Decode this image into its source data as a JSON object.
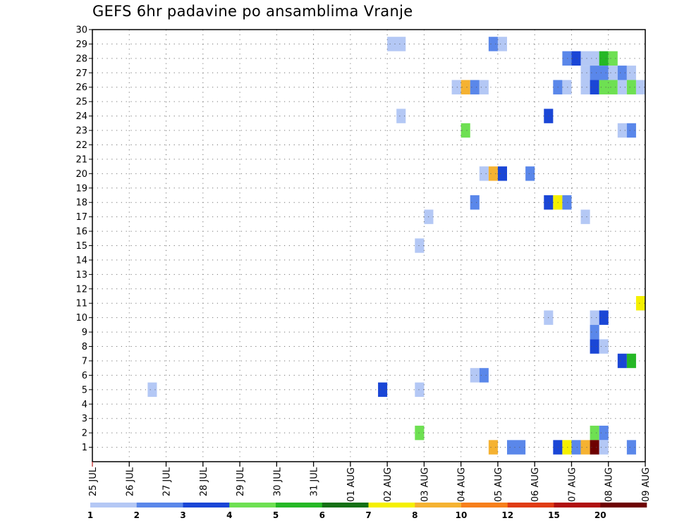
{
  "chart_data": {
    "type": "heatmap",
    "title": "GEFS 6hr padavine po ansamblima Vranje",
    "xlabel": "",
    "ylabel": "",
    "x_ticks": [
      "25 JUL",
      "26 JUL",
      "27 JUL",
      "28 JUL",
      "29 JUL",
      "30 JUL",
      "31 JUL",
      "01 AUG",
      "02 AUG",
      "03 AUG",
      "04 AUG",
      "05 AUG",
      "06 AUG",
      "07 AUG",
      "08 AUG",
      "09 AUG"
    ],
    "y_ticks": [
      "1",
      "2",
      "3",
      "4",
      "5",
      "6",
      "7",
      "8",
      "9",
      "10",
      "11",
      "12",
      "13",
      "14",
      "15",
      "16",
      "17",
      "18",
      "19",
      "20",
      "21",
      "22",
      "23",
      "24",
      "25",
      "26",
      "27",
      "28",
      "29",
      "30"
    ],
    "xlim_days": [
      0,
      15
    ],
    "ylim": [
      0,
      30
    ],
    "grid": true,
    "colorbar": {
      "levels": [
        "1",
        "2",
        "3",
        "4",
        "5",
        "6",
        "7",
        "8",
        "10",
        "12",
        "15",
        "20"
      ],
      "colors": [
        "#b4c8f5",
        "#5a87ea",
        "#1a46d6",
        "#6ee052",
        "#25b825",
        "#157015",
        "#f5f000",
        "#f5b232",
        "#f77f1b",
        "#e03c14",
        "#b01010",
        "#6e0000"
      ]
    },
    "cells": [
      {
        "d": 8.0,
        "w": 0.5,
        "m": 29,
        "c": 0
      },
      {
        "d": 10.75,
        "w": 0.25,
        "m": 29,
        "c": 1
      },
      {
        "d": 11.0,
        "w": 0.25,
        "m": 29,
        "c": 0
      },
      {
        "d": 12.75,
        "w": 0.25,
        "m": 28,
        "c": 1
      },
      {
        "d": 13.0,
        "w": 0.25,
        "m": 28,
        "c": 2
      },
      {
        "d": 13.25,
        "w": 0.5,
        "m": 28,
        "c": 0
      },
      {
        "d": 13.75,
        "w": 0.25,
        "m": 28,
        "c": 4
      },
      {
        "d": 14.0,
        "w": 0.25,
        "m": 28,
        "c": 3
      },
      {
        "d": 13.25,
        "w": 0.25,
        "m": 27,
        "c": 0
      },
      {
        "d": 13.5,
        "w": 0.5,
        "m": 27,
        "c": 1
      },
      {
        "d": 14.0,
        "w": 0.25,
        "m": 27,
        "c": 0
      },
      {
        "d": 14.25,
        "w": 0.25,
        "m": 27,
        "c": 1
      },
      {
        "d": 14.5,
        "w": 0.25,
        "m": 27,
        "c": 0
      },
      {
        "d": 9.75,
        "w": 0.25,
        "m": 26,
        "c": 0
      },
      {
        "d": 10.0,
        "w": 0.25,
        "m": 26,
        "c": 7
      },
      {
        "d": 10.25,
        "w": 0.25,
        "m": 26,
        "c": 1
      },
      {
        "d": 10.5,
        "w": 0.25,
        "m": 26,
        "c": 0
      },
      {
        "d": 12.5,
        "w": 0.25,
        "m": 26,
        "c": 1
      },
      {
        "d": 12.75,
        "w": 0.25,
        "m": 26,
        "c": 0
      },
      {
        "d": 13.25,
        "w": 0.25,
        "m": 26,
        "c": 0
      },
      {
        "d": 13.5,
        "w": 0.25,
        "m": 26,
        "c": 2
      },
      {
        "d": 13.75,
        "w": 0.5,
        "m": 26,
        "c": 3
      },
      {
        "d": 14.25,
        "w": 0.25,
        "m": 26,
        "c": 0
      },
      {
        "d": 14.5,
        "w": 0.25,
        "m": 26,
        "c": 3
      },
      {
        "d": 14.75,
        "w": 0.25,
        "m": 26,
        "c": 0
      },
      {
        "d": 12.25,
        "w": 0.25,
        "m": 24,
        "c": 2
      },
      {
        "d": 8.25,
        "w": 0.25,
        "m": 24,
        "c": 0
      },
      {
        "d": 10.0,
        "w": 0.25,
        "m": 23,
        "c": 3
      },
      {
        "d": 14.25,
        "w": 0.25,
        "m": 23,
        "c": 0
      },
      {
        "d": 14.5,
        "w": 0.25,
        "m": 23,
        "c": 1
      },
      {
        "d": 10.5,
        "w": 0.25,
        "m": 20,
        "c": 0
      },
      {
        "d": 10.75,
        "w": 0.25,
        "m": 20,
        "c": 7
      },
      {
        "d": 11.0,
        "w": 0.25,
        "m": 20,
        "c": 2
      },
      {
        "d": 11.75,
        "w": 0.25,
        "m": 20,
        "c": 1
      },
      {
        "d": 10.25,
        "w": 0.25,
        "m": 18,
        "c": 1
      },
      {
        "d": 12.25,
        "w": 0.25,
        "m": 18,
        "c": 2
      },
      {
        "d": 12.5,
        "w": 0.25,
        "m": 18,
        "c": 6
      },
      {
        "d": 12.75,
        "w": 0.25,
        "m": 18,
        "c": 1
      },
      {
        "d": 9.0,
        "w": 0.25,
        "m": 17,
        "c": 0
      },
      {
        "d": 13.25,
        "w": 0.25,
        "m": 17,
        "c": 0
      },
      {
        "d": 8.75,
        "w": 0.25,
        "m": 15,
        "c": 0
      },
      {
        "d": 14.75,
        "w": 0.25,
        "m": 11,
        "c": 6
      },
      {
        "d": 12.25,
        "w": 0.25,
        "m": 10,
        "c": 0
      },
      {
        "d": 13.5,
        "w": 0.25,
        "m": 10,
        "c": 0
      },
      {
        "d": 13.75,
        "w": 0.25,
        "m": 10,
        "c": 2
      },
      {
        "d": 13.5,
        "w": 0.25,
        "m": 9,
        "c": 1
      },
      {
        "d": 13.5,
        "w": 0.25,
        "m": 8,
        "c": 2
      },
      {
        "d": 13.75,
        "w": 0.25,
        "m": 8,
        "c": 0
      },
      {
        "d": 14.25,
        "w": 0.25,
        "m": 7,
        "c": 2
      },
      {
        "d": 14.5,
        "w": 0.25,
        "m": 7,
        "c": 4
      },
      {
        "d": 10.25,
        "w": 0.25,
        "m": 6,
        "c": 0
      },
      {
        "d": 10.5,
        "w": 0.25,
        "m": 6,
        "c": 1
      },
      {
        "d": 1.5,
        "w": 0.25,
        "m": 5,
        "c": 0
      },
      {
        "d": 7.75,
        "w": 0.25,
        "m": 5,
        "c": 2
      },
      {
        "d": 8.75,
        "w": 0.25,
        "m": 5,
        "c": 0
      },
      {
        "d": 8.75,
        "w": 0.25,
        "m": 2,
        "c": 3
      },
      {
        "d": 13.5,
        "w": 0.25,
        "m": 2,
        "c": 3
      },
      {
        "d": 13.75,
        "w": 0.25,
        "m": 2,
        "c": 1
      },
      {
        "d": 10.75,
        "w": 0.25,
        "m": 1,
        "c": 7
      },
      {
        "d": 11.25,
        "w": 0.5,
        "m": 1,
        "c": 1
      },
      {
        "d": 12.5,
        "w": 0.25,
        "m": 1,
        "c": 2
      },
      {
        "d": 12.75,
        "w": 0.25,
        "m": 1,
        "c": 6
      },
      {
        "d": 13.0,
        "w": 0.25,
        "m": 1,
        "c": 1
      },
      {
        "d": 13.25,
        "w": 0.25,
        "m": 1,
        "c": 7
      },
      {
        "d": 13.5,
        "w": 0.25,
        "m": 1,
        "c": 11
      },
      {
        "d": 13.75,
        "w": 0.25,
        "m": 1,
        "c": 0
      },
      {
        "d": 14.5,
        "w": 0.25,
        "m": 1,
        "c": 1
      }
    ]
  }
}
